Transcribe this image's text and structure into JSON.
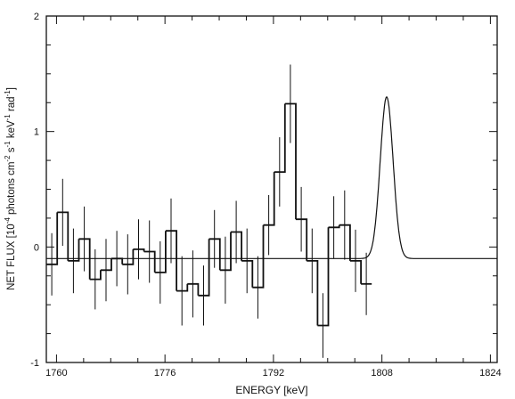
{
  "chart_data": {
    "type": "line",
    "xlabel": "ENERGY [keV]",
    "ylabel_parts": {
      "p1": "NET FLUX  [10",
      "s1": "-4",
      "p2": " photons cm",
      "s2": "-2",
      "p3": " s",
      "s3": "-1",
      "p4": " keV",
      "s4": "-1",
      "p5": " rad",
      "s5": "-1",
      "p6": "]"
    },
    "xlim": [
      1758.5,
      1825
    ],
    "ylim": [
      -1,
      2
    ],
    "x_ticks": [
      1760,
      1776,
      1792,
      1808,
      1824
    ],
    "y_ticks": [
      -1,
      0,
      1,
      2
    ],
    "bin_width": 1.6,
    "bin_start": 1758.5,
    "series": [
      {
        "kind": "histogram",
        "values": [
          -0.15,
          0.3,
          -0.12,
          0.07,
          -0.28,
          -0.2,
          -0.1,
          -0.15,
          -0.02,
          -0.04,
          -0.22,
          0.14,
          -0.38,
          -0.32,
          -0.42,
          0.07,
          -0.2,
          0.13,
          -0.12,
          -0.35,
          0.19,
          0.65,
          1.24,
          0.24,
          -0.12,
          -0.68,
          0.17,
          0.19,
          -0.12,
          -0.32
        ],
        "errors": [
          0.27,
          0.29,
          0.28,
          0.28,
          0.26,
          0.27,
          0.24,
          0.26,
          0.26,
          0.27,
          0.27,
          0.28,
          0.3,
          0.29,
          0.26,
          0.25,
          0.29,
          0.27,
          0.28,
          0.27,
          0.26,
          0.3,
          0.34,
          0.28,
          0.28,
          0.28,
          0.27,
          0.3,
          0.27,
          0.27
        ]
      },
      {
        "kind": "fit",
        "baseline": -0.1,
        "amplitude": 1.4,
        "center": 1808.7,
        "sigma": 0.95
      }
    ]
  }
}
